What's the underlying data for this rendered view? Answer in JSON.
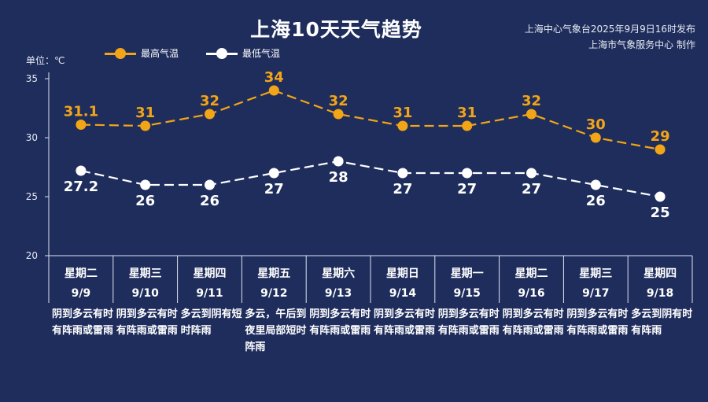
{
  "title": "上海10天天气趋势",
  "source_line1": "上海中心气象台2025年9月9日16时发布",
  "source_line2": "上海市气象服务中心 制作",
  "unit_label": "单位：℃",
  "colors": {
    "background": "#1f2d5c",
    "high": "#f2a516",
    "low": "#ffffff",
    "axis": "#dfe4f0"
  },
  "chart_data": {
    "type": "line",
    "title": "上海10天天气趋势",
    "ylabel": "单位：℃",
    "ylim": [
      20,
      35
    ],
    "yticks": [
      20,
      25,
      30,
      35
    ],
    "grid": false,
    "legend": "top-left",
    "x": [
      "9/9",
      "9/10",
      "9/11",
      "9/12",
      "9/13",
      "9/14",
      "9/15",
      "9/16",
      "9/17",
      "9/18"
    ],
    "weekdays": [
      "星期二",
      "星期三",
      "星期四",
      "星期五",
      "星期六",
      "星期日",
      "星期一",
      "星期二",
      "星期三",
      "星期四"
    ],
    "series": [
      {
        "name": "最高气温",
        "values": [
          31.1,
          31,
          32,
          34,
          32,
          31,
          31,
          32,
          30,
          29
        ],
        "labels": [
          "31.1",
          "31",
          "32",
          "34",
          "32",
          "31",
          "31",
          "32",
          "30",
          "29"
        ]
      },
      {
        "name": "最低气温",
        "values": [
          27.2,
          26,
          26,
          27,
          28,
          27,
          27,
          27,
          26,
          25
        ],
        "labels": [
          "27.2",
          "26",
          "26",
          "27",
          "28",
          "27",
          "27",
          "27",
          "26",
          "25"
        ]
      }
    ],
    "descriptions": [
      "阴到多云有时有阵雨或雷雨",
      "阴到多云有时有阵雨或雷雨",
      "多云到阴有短时阵雨",
      "多云，午后到夜里局部短时阵雨",
      "阴到多云有时有阵雨或雷雨",
      "阴到多云有时有阵雨或雷雨",
      "阴到多云有时有阵雨或雷雨",
      "阴到多云有时有阵雨或雷雨",
      "阴到多云有时有阵雨或雷雨",
      "多云到阴有时有阵雨"
    ]
  }
}
